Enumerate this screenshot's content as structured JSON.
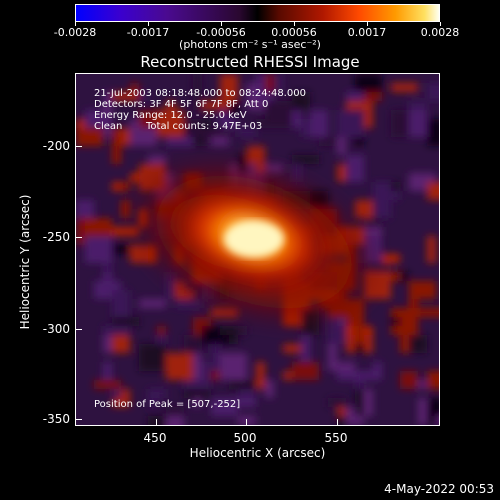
{
  "colorbar": {
    "ticks": [
      "-0.0028",
      "-0.0017",
      "-0.00056",
      "0.00056",
      "0.0017",
      "0.0028"
    ],
    "units": "(photons cm⁻² s⁻¹ asec⁻²)"
  },
  "title": "Reconstructed RHESSI Image",
  "info": {
    "time_range": "21-Jul-2003 08:18:48.000 to 08:24:48.000",
    "detectors": "Detectors: 3F 4F 5F 6F 7F 8F, Att 0",
    "energy": "Energy Range: 12.0 - 25.0 keV",
    "algorithm": "Clean",
    "total_counts": "Total counts: 9.47E+03",
    "peak": "Position of Peak = [507,-252]"
  },
  "axes": {
    "xlabel": "Heliocentric X (arcsec)",
    "ylabel": "Heliocentric Y (arcsec)",
    "xticks": [
      "450",
      "500",
      "550"
    ],
    "yticks": [
      "-200",
      "-250",
      "-300",
      "-350"
    ]
  },
  "datestamp": "4-May-2022 00:53"
}
